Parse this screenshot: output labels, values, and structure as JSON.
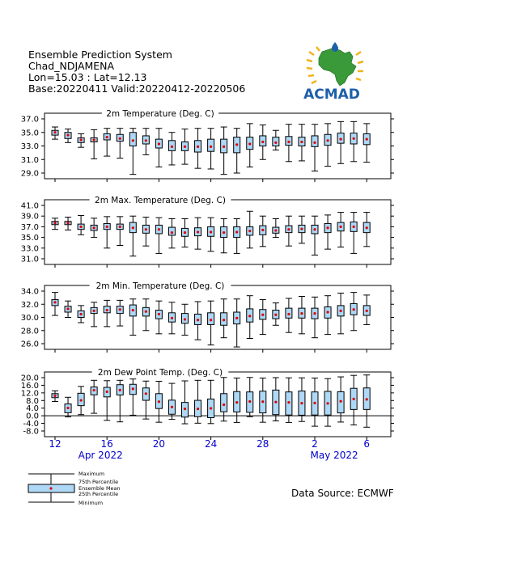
{
  "header": {
    "line1": "Ensemble Prediction System",
    "line2": "Chad_NDJAMENA",
    "line3": "Lon=15.03 : Lat=12.13",
    "line4": "Base:20220411 Valid:20220412-20220506"
  },
  "logo": {
    "text": "ACMAD",
    "color": "#1d5fa8",
    "accent": "#f2b21b",
    "map_color": "#3a9a3a"
  },
  "colors": {
    "box_fill": "#aed8f5",
    "mean_dot": "#dd0000",
    "axis": "#000000",
    "xlabel": "#0000cc"
  },
  "x_axis": {
    "ticks": [
      {
        "day": 12,
        "label": "12"
      },
      {
        "day": 16,
        "label": "16"
      },
      {
        "day": 20,
        "label": "20"
      },
      {
        "day": 24,
        "label": "24"
      },
      {
        "day": 28,
        "label": "28"
      },
      {
        "day": 32,
        "label": "2"
      },
      {
        "day": 36,
        "label": "6"
      }
    ],
    "month_labels": [
      {
        "text": "Apr 2022",
        "day": 15.5
      },
      {
        "text": "May 2022",
        "day": 33.5
      }
    ]
  },
  "legend": {
    "maximum": "Maximum",
    "p75": "75th Percentile",
    "mean": "Ensemble Mean",
    "p25": "25th Percentile",
    "minimum": "Minimum"
  },
  "source": "Data Source: ECMWF",
  "chart_data": [
    {
      "type": "boxplot",
      "title": "2m Temperature (Deg. C)",
      "ylim": [
        29.0,
        37.0
      ],
      "yticks": [
        "37.0",
        "35.0",
        "33.0",
        "31.0",
        "29.0"
      ],
      "ytick_values": [
        37,
        35,
        33,
        31,
        29
      ],
      "x_start_day": 12,
      "series": [
        {
          "min": 34.0,
          "p25": 34.6,
          "mean": 35.0,
          "p75": 35.3,
          "max": 35.8
        },
        {
          "min": 33.5,
          "p25": 34.1,
          "mean": 34.6,
          "p75": 35.0,
          "max": 35.5
        },
        {
          "min": 32.8,
          "p25": 33.5,
          "mean": 33.9,
          "p75": 34.2,
          "max": 34.8
        },
        {
          "min": 31.1,
          "p25": 33.6,
          "mean": 33.9,
          "p75": 34.2,
          "max": 35.4
        },
        {
          "min": 31.5,
          "p25": 33.9,
          "mean": 34.3,
          "p75": 34.8,
          "max": 35.6
        },
        {
          "min": 31.2,
          "p25": 33.7,
          "mean": 34.1,
          "p75": 34.7,
          "max": 35.6
        },
        {
          "min": 28.8,
          "p25": 33.0,
          "mean": 33.8,
          "p75": 35.0,
          "max": 35.6
        },
        {
          "min": 31.7,
          "p25": 33.3,
          "mean": 33.8,
          "p75": 34.5,
          "max": 35.6
        },
        {
          "min": 29.9,
          "p25": 32.7,
          "mean": 33.3,
          "p75": 34.0,
          "max": 35.6
        },
        {
          "min": 30.2,
          "p25": 32.3,
          "mean": 32.9,
          "p75": 33.8,
          "max": 35.0
        },
        {
          "min": 30.3,
          "p25": 32.3,
          "mean": 32.9,
          "p75": 33.6,
          "max": 35.5
        },
        {
          "min": 29.7,
          "p25": 32.1,
          "mean": 32.9,
          "p75": 33.8,
          "max": 35.6
        },
        {
          "min": 29.6,
          "p25": 32.2,
          "mean": 32.9,
          "p75": 34.0,
          "max": 35.6
        },
        {
          "min": 28.8,
          "p25": 32.0,
          "mean": 32.9,
          "p75": 34.0,
          "max": 35.8
        },
        {
          "min": 29.0,
          "p25": 32.0,
          "mean": 33.2,
          "p75": 34.3,
          "max": 35.6
        },
        {
          "min": 29.9,
          "p25": 32.5,
          "mean": 33.3,
          "p75": 34.3,
          "max": 36.3
        },
        {
          "min": 31.0,
          "p25": 33.0,
          "mean": 33.6,
          "p75": 34.5,
          "max": 36.1
        },
        {
          "min": 32.4,
          "p25": 33.0,
          "mean": 33.5,
          "p75": 34.3,
          "max": 35.3
        },
        {
          "min": 30.7,
          "p25": 33.1,
          "mean": 33.6,
          "p75": 34.4,
          "max": 36.2
        },
        {
          "min": 30.8,
          "p25": 33.0,
          "mean": 33.6,
          "p75": 34.3,
          "max": 36.2
        },
        {
          "min": 29.3,
          "p25": 32.9,
          "mean": 33.5,
          "p75": 34.5,
          "max": 36.2
        },
        {
          "min": 30.0,
          "p25": 33.1,
          "mean": 33.8,
          "p75": 34.7,
          "max": 36.3
        },
        {
          "min": 30.4,
          "p25": 33.4,
          "mean": 34.0,
          "p75": 34.9,
          "max": 36.6
        },
        {
          "min": 30.7,
          "p25": 33.3,
          "mean": 34.1,
          "p75": 34.9,
          "max": 36.6
        },
        {
          "min": 30.6,
          "p25": 33.2,
          "mean": 34.0,
          "p75": 34.8,
          "max": 36.3
        }
      ]
    },
    {
      "type": "boxplot",
      "title": "2m Max. Temperature (Deg. C)",
      "ylim": [
        31.0,
        41.0
      ],
      "yticks": [
        "41.0",
        "39.0",
        "37.0",
        "35.0",
        "33.0",
        "31.0"
      ],
      "ytick_values": [
        41,
        39,
        37,
        35,
        33,
        31
      ],
      "x_start_day": 12,
      "series": [
        {
          "min": 36.5,
          "p25": 37.4,
          "mean": 37.7,
          "p75": 38.0,
          "max": 38.6
        },
        {
          "min": 36.4,
          "p25": 37.4,
          "mean": 37.7,
          "p75": 38.0,
          "max": 38.8
        },
        {
          "min": 35.5,
          "p25": 36.5,
          "mean": 37.0,
          "p75": 37.5,
          "max": 39.1
        },
        {
          "min": 35.0,
          "p25": 36.3,
          "mean": 36.8,
          "p75": 37.3,
          "max": 38.6
        },
        {
          "min": 33.0,
          "p25": 36.5,
          "mean": 37.0,
          "p75": 37.6,
          "max": 38.9
        },
        {
          "min": 33.5,
          "p25": 36.5,
          "mean": 37.0,
          "p75": 37.5,
          "max": 38.9
        },
        {
          "min": 31.5,
          "p25": 35.9,
          "mean": 36.8,
          "p75": 37.8,
          "max": 39.0
        },
        {
          "min": 33.4,
          "p25": 35.8,
          "mean": 36.5,
          "p75": 37.3,
          "max": 38.8
        },
        {
          "min": 32.0,
          "p25": 35.7,
          "mean": 36.5,
          "p75": 37.3,
          "max": 38.7
        },
        {
          "min": 33.0,
          "p25": 35.4,
          "mean": 35.9,
          "p75": 36.9,
          "max": 38.5
        },
        {
          "min": 33.2,
          "p25": 35.2,
          "mean": 35.9,
          "p75": 36.7,
          "max": 38.5
        },
        {
          "min": 32.8,
          "p25": 35.3,
          "mean": 36.0,
          "p75": 36.8,
          "max": 38.7
        },
        {
          "min": 32.4,
          "p25": 35.2,
          "mean": 36.0,
          "p75": 37.0,
          "max": 38.7
        },
        {
          "min": 32.1,
          "p25": 35.0,
          "mean": 35.9,
          "p75": 37.0,
          "max": 38.5
        },
        {
          "min": 32.0,
          "p25": 35.0,
          "mean": 36.0,
          "p75": 37.0,
          "max": 38.5
        },
        {
          "min": 33.0,
          "p25": 35.4,
          "mean": 36.2,
          "p75": 37.0,
          "max": 39.9
        },
        {
          "min": 33.3,
          "p25": 35.5,
          "mean": 36.4,
          "p75": 37.2,
          "max": 39.0
        },
        {
          "min": 35.0,
          "p25": 35.8,
          "mean": 36.3,
          "p75": 36.9,
          "max": 38.5
        },
        {
          "min": 33.4,
          "p25": 35.9,
          "mean": 36.5,
          "p75": 37.2,
          "max": 39.0
        },
        {
          "min": 33.9,
          "p25": 35.9,
          "mean": 36.6,
          "p75": 37.3,
          "max": 39.0
        },
        {
          "min": 31.7,
          "p25": 35.7,
          "mean": 36.5,
          "p75": 37.3,
          "max": 39.0
        },
        {
          "min": 32.8,
          "p25": 35.9,
          "mean": 36.8,
          "p75": 37.6,
          "max": 39.2
        },
        {
          "min": 33.2,
          "p25": 36.2,
          "mean": 37.0,
          "p75": 37.8,
          "max": 39.7
        },
        {
          "min": 32.0,
          "p25": 36.1,
          "mean": 37.0,
          "p75": 37.9,
          "max": 39.7
        },
        {
          "min": 33.3,
          "p25": 35.9,
          "mean": 36.8,
          "p75": 37.8,
          "max": 39.7
        }
      ]
    },
    {
      "type": "boxplot",
      "title": "2m Min. Temperature (Deg. C)",
      "ylim": [
        26.0,
        34.0
      ],
      "yticks": [
        "34.0",
        "32.0",
        "30.0",
        "28.0",
        "26.0"
      ],
      "ytick_values": [
        34,
        32,
        30,
        28,
        26
      ],
      "x_start_day": 12,
      "series": [
        {
          "min": 30.3,
          "p25": 31.8,
          "mean": 32.3,
          "p75": 32.7,
          "max": 33.8
        },
        {
          "min": 30.0,
          "p25": 30.8,
          "mean": 31.3,
          "p75": 31.7,
          "max": 32.5
        },
        {
          "min": 29.2,
          "p25": 30.0,
          "mean": 30.5,
          "p75": 31.0,
          "max": 31.8
        },
        {
          "min": 28.6,
          "p25": 30.6,
          "mean": 31.0,
          "p75": 31.5,
          "max": 32.3
        },
        {
          "min": 28.6,
          "p25": 30.7,
          "mean": 31.1,
          "p75": 31.7,
          "max": 32.6
        },
        {
          "min": 28.7,
          "p25": 30.6,
          "mean": 31.2,
          "p75": 31.7,
          "max": 32.6
        },
        {
          "min": 27.3,
          "p25": 30.2,
          "mean": 31.1,
          "p75": 31.9,
          "max": 32.8
        },
        {
          "min": 28.0,
          "p25": 30.2,
          "mean": 30.9,
          "p75": 31.5,
          "max": 32.8
        },
        {
          "min": 27.5,
          "p25": 29.8,
          "mean": 30.5,
          "p75": 31.1,
          "max": 32.5
        },
        {
          "min": 27.5,
          "p25": 29.3,
          "mean": 29.9,
          "p75": 30.7,
          "max": 32.3
        },
        {
          "min": 27.3,
          "p25": 29.1,
          "mean": 29.7,
          "p75": 30.6,
          "max": 32.0
        },
        {
          "min": 26.6,
          "p25": 28.9,
          "mean": 29.6,
          "p75": 30.5,
          "max": 32.4
        },
        {
          "min": 25.8,
          "p25": 28.9,
          "mean": 29.6,
          "p75": 30.7,
          "max": 32.5
        },
        {
          "min": 26.9,
          "p25": 28.8,
          "mean": 29.6,
          "p75": 30.7,
          "max": 32.8
        },
        {
          "min": 25.5,
          "p25": 29.0,
          "mean": 29.9,
          "p75": 30.8,
          "max": 32.8
        },
        {
          "min": 26.8,
          "p25": 29.3,
          "mean": 30.2,
          "p75": 31.3,
          "max": 33.3
        },
        {
          "min": 27.4,
          "p25": 29.7,
          "mean": 30.4,
          "p75": 31.2,
          "max": 32.7
        },
        {
          "min": 28.8,
          "p25": 29.8,
          "mean": 30.4,
          "p75": 31.1,
          "max": 32.2
        },
        {
          "min": 27.7,
          "p25": 29.9,
          "mean": 30.5,
          "p75": 31.4,
          "max": 32.9
        },
        {
          "min": 27.5,
          "p25": 29.9,
          "mean": 30.6,
          "p75": 31.4,
          "max": 33.2
        },
        {
          "min": 26.9,
          "p25": 29.8,
          "mean": 30.6,
          "p75": 31.4,
          "max": 33.1
        },
        {
          "min": 27.4,
          "p25": 29.9,
          "mean": 30.8,
          "p75": 31.6,
          "max": 33.3
        },
        {
          "min": 27.5,
          "p25": 30.2,
          "mean": 31.0,
          "p75": 31.8,
          "max": 33.7
        },
        {
          "min": 28.0,
          "p25": 30.4,
          "mean": 31.2,
          "p75": 32.1,
          "max": 33.8
        },
        {
          "min": 28.9,
          "p25": 30.3,
          "mean": 31.0,
          "p75": 31.8,
          "max": 33.4
        }
      ]
    },
    {
      "type": "boxplot",
      "title": "2m Dew Point Temp. (Deg. C)",
      "ylim": [
        -8.0,
        20.0
      ],
      "yticks": [
        "20.0",
        "16.0",
        "12.0",
        "8.0",
        "4.0",
        "0.0",
        "-4.0",
        "-8.0"
      ],
      "ytick_values": [
        20,
        16,
        12,
        8,
        4,
        0,
        -4,
        -8
      ],
      "zero_line": 0,
      "x_start_day": 12,
      "series": [
        {
          "min": 7.5,
          "p25": 9.5,
          "mean": 10.5,
          "p75": 11.6,
          "max": 13.1
        },
        {
          "min": -0.6,
          "p25": 1.6,
          "mean": 4.1,
          "p75": 6.2,
          "max": 9.7
        },
        {
          "min": 0.6,
          "p25": 5.3,
          "mean": 8.1,
          "p75": 11.8,
          "max": 15.4
        },
        {
          "min": 1.3,
          "p25": 11.0,
          "mean": 13.4,
          "p75": 15.1,
          "max": 18.6
        },
        {
          "min": -2.4,
          "p25": 9.9,
          "mean": 12.6,
          "p75": 14.9,
          "max": 18.4
        },
        {
          "min": -3.2,
          "p25": 10.9,
          "mean": 13.5,
          "p75": 16.3,
          "max": 18.6
        },
        {
          "min": 0.3,
          "p25": 11.2,
          "mean": 14.1,
          "p75": 16.5,
          "max": 19.3
        },
        {
          "min": -1.7,
          "p25": 8.1,
          "mean": 11.6,
          "p75": 14.6,
          "max": 18.2
        },
        {
          "min": -3.4,
          "p25": 3.8,
          "mean": 7.4,
          "p75": 11.6,
          "max": 18.1
        },
        {
          "min": -1.9,
          "p25": 0.8,
          "mean": 4.6,
          "p75": 8.2,
          "max": 17.0
        },
        {
          "min": -4.2,
          "p25": -0.7,
          "mean": 3.6,
          "p75": 7.0,
          "max": 18.3
        },
        {
          "min": -3.9,
          "p25": -0.5,
          "mean": 3.6,
          "p75": 8.1,
          "max": 18.6
        },
        {
          "min": -4.1,
          "p25": -1.0,
          "mean": 3.9,
          "p75": 8.8,
          "max": 18.6
        },
        {
          "min": -2.8,
          "p25": 2.1,
          "mean": 5.8,
          "p75": 11.6,
          "max": 20.1
        },
        {
          "min": -3.5,
          "p25": 2.0,
          "mean": 7.0,
          "p75": 12.7,
          "max": 19.8
        },
        {
          "min": -0.5,
          "p25": 1.8,
          "mean": 7.5,
          "p75": 12.5,
          "max": 20.1
        },
        {
          "min": -3.4,
          "p25": 1.5,
          "mean": 7.4,
          "p75": 12.9,
          "max": 19.8
        },
        {
          "min": -2.7,
          "p25": 0.6,
          "mean": 7.2,
          "p75": 13.5,
          "max": 20.0
        },
        {
          "min": -3.5,
          "p25": 0.4,
          "mean": 7.0,
          "p75": 12.5,
          "max": 19.9
        },
        {
          "min": -3.0,
          "p25": 0.3,
          "mean": 6.6,
          "p75": 13.0,
          "max": 19.9
        },
        {
          "min": -5.5,
          "p25": 0.4,
          "mean": 6.7,
          "p75": 12.5,
          "max": 19.8
        },
        {
          "min": -5.5,
          "p25": 0.4,
          "mean": 6.5,
          "p75": 12.8,
          "max": 19.5
        },
        {
          "min": -3.3,
          "p25": 1.5,
          "mean": 7.6,
          "p75": 12.6,
          "max": 20.4
        },
        {
          "min": -4.8,
          "p25": 3.3,
          "mean": 8.8,
          "p75": 14.4,
          "max": 21.2
        },
        {
          "min": -6.0,
          "p25": 3.3,
          "mean": 8.6,
          "p75": 14.6,
          "max": 21.4
        }
      ]
    }
  ]
}
